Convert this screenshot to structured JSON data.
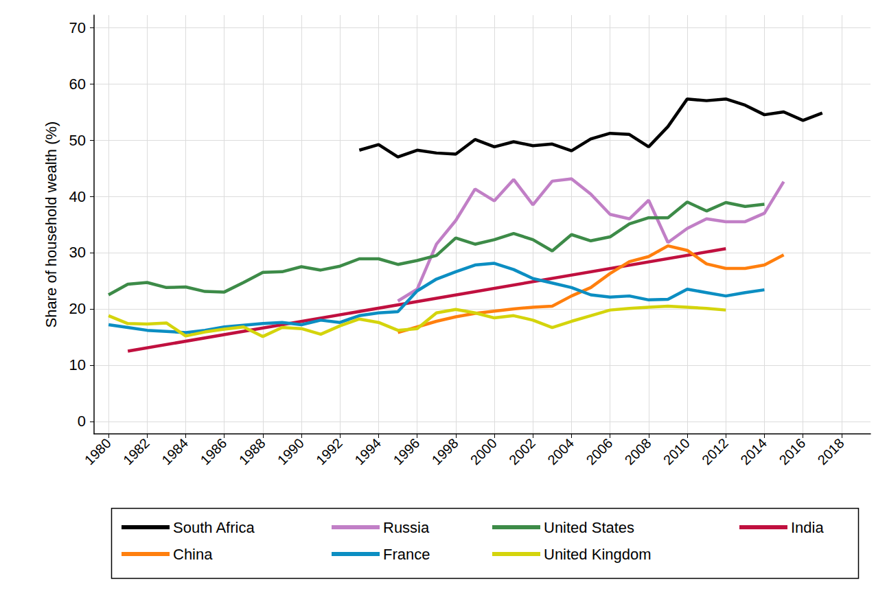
{
  "chart_data": {
    "type": "line",
    "y_label": "Share of household wealth (%)",
    "xlim": [
      1979.25,
      2019.5
    ],
    "xticks": [
      1980,
      1982,
      1984,
      1986,
      1988,
      1990,
      1992,
      1994,
      1996,
      1998,
      2000,
      2002,
      2004,
      2006,
      2008,
      2010,
      2012,
      2014,
      2016,
      2018
    ],
    "ylim": [
      -2.2,
      72.2
    ],
    "yticks": [
      0,
      10,
      20,
      30,
      40,
      50,
      60,
      70
    ],
    "grid": true,
    "legend": "bottom",
    "series": [
      {
        "name": "South Africa",
        "color": "#000000",
        "x": [
          1993,
          1994,
          1995,
          1996,
          1997,
          1998,
          1999,
          2000,
          2001,
          2002,
          2003,
          2004,
          2005,
          2006,
          2007,
          2008,
          2009,
          2010,
          2011,
          2012,
          2013,
          2014,
          2015,
          2016,
          2017
        ],
        "values": [
          48.2,
          49.2,
          47.0,
          48.2,
          47.7,
          47.5,
          50.1,
          48.8,
          49.7,
          49.0,
          49.3,
          48.1,
          50.2,
          51.2,
          51.0,
          48.8,
          52.4,
          57.3,
          57.0,
          57.3,
          56.2,
          54.5,
          55.0,
          53.5,
          54.8
        ]
      },
      {
        "name": "Russia",
        "color": "#c17fc6",
        "x": [
          1995,
          1996,
          1997,
          1998,
          1999,
          2000,
          2001,
          2002,
          2003,
          2004,
          2005,
          2006,
          2007,
          2008,
          2009,
          2010,
          2011,
          2012,
          2013,
          2014,
          2015
        ],
        "values": [
          21.4,
          23.5,
          31.5,
          35.7,
          41.3,
          39.2,
          43.0,
          38.5,
          42.7,
          43.1,
          40.4,
          36.8,
          36.0,
          39.3,
          31.8,
          34.3,
          36.0,
          35.5,
          35.5,
          37.0,
          42.6
        ]
      },
      {
        "name": "United States",
        "color": "#3d8b48",
        "x": [
          1980,
          1981,
          1982,
          1983,
          1984,
          1985,
          1986,
          1987,
          1988,
          1989,
          1990,
          1991,
          1992,
          1993,
          1994,
          1995,
          1996,
          1997,
          1998,
          1999,
          2000,
          2001,
          2002,
          2003,
          2004,
          2005,
          2006,
          2007,
          2008,
          2009,
          2010,
          2011,
          2012,
          2013,
          2014
        ],
        "values": [
          22.5,
          24.4,
          24.7,
          23.8,
          23.9,
          23.1,
          23.0,
          24.7,
          26.5,
          26.6,
          27.5,
          26.9,
          27.6,
          28.9,
          28.9,
          27.9,
          28.6,
          29.5,
          32.6,
          31.5,
          32.3,
          33.4,
          32.3,
          30.3,
          33.2,
          32.1,
          32.8,
          35.1,
          36.2,
          36.2,
          39.0,
          37.4,
          38.9,
          38.2,
          38.6
        ]
      },
      {
        "name": "India",
        "color": "#c0103f",
        "x": [
          1981,
          2012
        ],
        "values": [
          12.5,
          30.7
        ]
      },
      {
        "name": "China",
        "color": "#ff7f0e",
        "x": [
          1995,
          1996,
          1997,
          1998,
          1999,
          2000,
          2001,
          2002,
          2003,
          2004,
          2005,
          2006,
          2007,
          2008,
          2009,
          2010,
          2011,
          2012,
          2013,
          2014,
          2015
        ],
        "values": [
          15.8,
          16.8,
          17.8,
          18.6,
          19.2,
          19.6,
          20.0,
          20.3,
          20.5,
          22.3,
          23.8,
          26.3,
          28.4,
          29.3,
          31.2,
          30.4,
          28.0,
          27.2,
          27.2,
          27.8,
          29.6
        ]
      },
      {
        "name": "France",
        "color": "#0c8ec2",
        "x": [
          1980,
          1981,
          1982,
          1983,
          1984,
          1985,
          1986,
          1987,
          1988,
          1989,
          1990,
          1991,
          1992,
          1993,
          1994,
          1995,
          1996,
          1997,
          1998,
          1999,
          2000,
          2001,
          2002,
          2003,
          2004,
          2005,
          2006,
          2007,
          2008,
          2009,
          2010,
          2011,
          2012,
          2013,
          2014
        ],
        "values": [
          17.2,
          16.7,
          16.2,
          16.0,
          15.8,
          16.2,
          16.8,
          17.1,
          17.4,
          17.6,
          17.2,
          18.0,
          17.6,
          18.8,
          19.3,
          19.5,
          23.2,
          25.3,
          26.6,
          27.8,
          28.1,
          27.0,
          25.4,
          24.6,
          23.8,
          22.5,
          22.1,
          22.3,
          21.6,
          21.7,
          23.5,
          22.9,
          22.3,
          22.9,
          23.4
        ]
      },
      {
        "name": "United Kingdom",
        "color": "#d4d40c",
        "x": [
          1980,
          1981,
          1982,
          1983,
          1984,
          1985,
          1986,
          1987,
          1988,
          1989,
          1990,
          1991,
          1992,
          1993,
          1994,
          1995,
          1996,
          1997,
          1998,
          1999,
          2000,
          2001,
          2002,
          2003,
          2004,
          2005,
          2006,
          2007,
          2008,
          2009,
          2010,
          2011,
          2012
        ],
        "values": [
          18.8,
          17.4,
          17.3,
          17.5,
          15.2,
          15.9,
          16.4,
          16.8,
          15.1,
          16.7,
          16.5,
          15.5,
          17.0,
          18.2,
          17.6,
          16.2,
          16.5,
          19.3,
          19.9,
          19.3,
          18.4,
          18.8,
          18.0,
          16.7,
          17.8,
          18.8,
          19.8,
          20.1,
          20.3,
          20.5,
          20.3,
          20.1,
          19.8
        ]
      }
    ]
  }
}
